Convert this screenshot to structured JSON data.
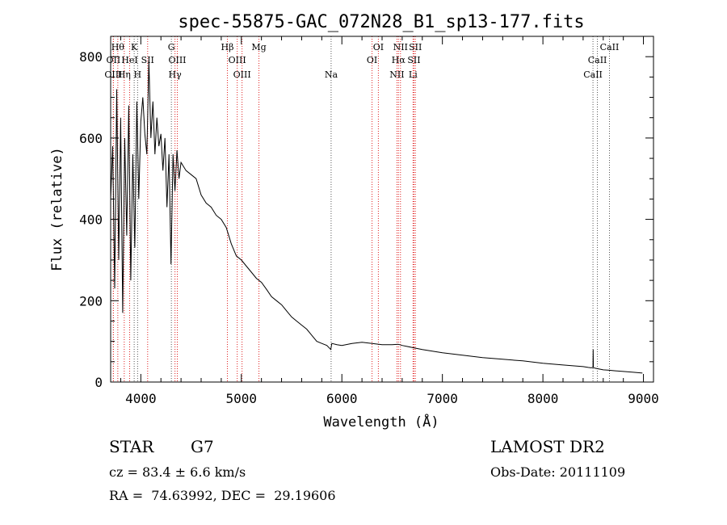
{
  "chart_data": {
    "type": "line",
    "title": "spec-55875-GAC_072N28_B1_sp13-177.fits",
    "xlabel": "Wavelength (Å)",
    "ylabel": "Flux (relative)",
    "xlim": [
      3700,
      9100
    ],
    "ylim": [
      0,
      850
    ],
    "xticks": [
      4000,
      5000,
      6000,
      7000,
      8000,
      9000
    ],
    "yticks": [
      0,
      200,
      400,
      600,
      800
    ],
    "x_tick_labels": [
      "4000",
      "5000",
      "6000",
      "7000",
      "8000",
      "9000"
    ],
    "y_tick_labels": [
      "0",
      "200",
      "400",
      "600",
      "800"
    ],
    "grid": false,
    "line_color": "#000000",
    "marker_color_red": "#e02020",
    "marker_color_grey": "#555555",
    "series": [
      {
        "x": [
          3700,
          3720,
          3740,
          3760,
          3780,
          3800,
          3820,
          3840,
          3860,
          3880,
          3900,
          3920,
          3940,
          3960,
          3980,
          4000,
          4020,
          4040,
          4060,
          4080,
          4100,
          4120,
          4140,
          4160,
          4180,
          4200,
          4220,
          4240,
          4260,
          4280,
          4300,
          4320,
          4340,
          4360,
          4380,
          4400,
          4450,
          4500,
          4550,
          4600,
          4650,
          4700,
          4750,
          4800,
          4850,
          4900,
          4950,
          5000,
          5050,
          5100,
          5150,
          5200,
          5250,
          5300,
          5350,
          5400,
          5450,
          5500,
          5550,
          5600,
          5650,
          5700,
          5750,
          5800,
          5850,
          5890,
          5900,
          5950,
          6000,
          6100,
          6200,
          6300,
          6400,
          6500,
          6560,
          6600,
          6700,
          6800,
          6900,
          7000,
          7200,
          7400,
          7600,
          7800,
          8000,
          8200,
          8300,
          8400,
          8450,
          8480,
          8498,
          8500,
          8502,
          8520,
          8560,
          8600,
          8660,
          8700,
          8800,
          8900,
          8990
        ],
        "y": [
          450,
          580,
          230,
          720,
          300,
          650,
          170,
          600,
          360,
          680,
          250,
          560,
          330,
          690,
          450,
          640,
          700,
          610,
          560,
          790,
          600,
          690,
          560,
          650,
          580,
          610,
          520,
          600,
          430,
          560,
          290,
          560,
          470,
          570,
          500,
          540,
          520,
          510,
          500,
          460,
          440,
          430,
          410,
          400,
          380,
          340,
          310,
          300,
          285,
          270,
          255,
          245,
          228,
          210,
          200,
          190,
          175,
          160,
          150,
          140,
          130,
          115,
          100,
          95,
          90,
          80,
          95,
          92,
          90,
          95,
          98,
          95,
          92,
          92,
          93,
          90,
          85,
          80,
          76,
          72,
          66,
          60,
          56,
          52,
          46,
          42,
          40,
          38,
          36,
          35,
          36,
          80,
          36,
          34,
          32,
          30,
          29,
          28,
          26,
          24,
          22
        ]
      }
    ],
    "lines_top": [
      {
        "label": "Hθ",
        "x": 3771,
        "row": 1,
        "color": "red"
      },
      {
        "label": "K",
        "x": 3934,
        "row": 1,
        "color": "grey"
      },
      {
        "label": "G",
        "x": 4304,
        "row": 1,
        "color": "grey"
      },
      {
        "label": "Hβ",
        "x": 4861,
        "row": 1,
        "color": "red"
      },
      {
        "label": "Mg",
        "x": 5175,
        "row": 1,
        "color": "red"
      },
      {
        "label": "OI",
        "x": 6363,
        "row": 1,
        "color": "red"
      },
      {
        "label": "NII",
        "x": 6583,
        "row": 1,
        "color": "red"
      },
      {
        "label": "SII",
        "x": 6731,
        "row": 1,
        "color": "red"
      },
      {
        "label": "CaII",
        "x": 8662,
        "row": 1,
        "color": "grey"
      },
      {
        "label": "OII",
        "x": 3727,
        "row": 2,
        "color": "red"
      },
      {
        "label": "HeI",
        "x": 3889,
        "row": 2,
        "color": "red"
      },
      {
        "label": "SII",
        "x": 4068,
        "row": 2,
        "color": "red"
      },
      {
        "label": "OIII",
        "x": 4363,
        "row": 2,
        "color": "red"
      },
      {
        "label": "OIII",
        "x": 4959,
        "row": 2,
        "color": "red"
      },
      {
        "label": "OI",
        "x": 6300,
        "row": 2,
        "color": "red"
      },
      {
        "label": "Hα",
        "x": 6563,
        "row": 2,
        "color": "red"
      },
      {
        "label": "SII",
        "x": 6717,
        "row": 2,
        "color": "red"
      },
      {
        "label": "CaII",
        "x": 8542,
        "row": 2,
        "color": "grey"
      },
      {
        "label": "OIII",
        "x": 3727,
        "row": 3,
        "color": "red"
      },
      {
        "label": "Hη",
        "x": 3835,
        "row": 3,
        "color": "red"
      },
      {
        "label": "H",
        "x": 3968,
        "row": 3,
        "color": "grey"
      },
      {
        "label": "Hγ",
        "x": 4340,
        "row": 3,
        "color": "red"
      },
      {
        "label": "OIII",
        "x": 5007,
        "row": 3,
        "color": "red"
      },
      {
        "label": "Na",
        "x": 5893,
        "row": 3,
        "color": "grey"
      },
      {
        "label": "NII",
        "x": 6548,
        "row": 3,
        "color": "red"
      },
      {
        "label": "Li",
        "x": 6708,
        "row": 3,
        "color": "red"
      },
      {
        "label": "CaII",
        "x": 8498,
        "row": 3,
        "color": "grey"
      }
    ]
  },
  "info": {
    "object_class": "STAR",
    "subclass": "G7",
    "survey": "LAMOST DR2",
    "cz": "cz = 83.4 ± 6.6 km/s",
    "obs_date": "Obs-Date: 20111109",
    "coords": "RA =  74.63992, DEC =  29.19606"
  }
}
